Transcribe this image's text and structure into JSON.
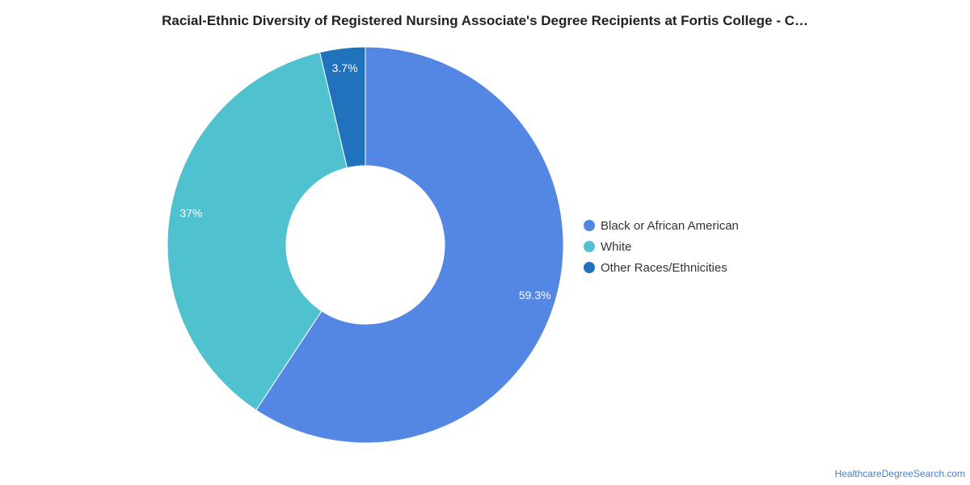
{
  "chart_data": {
    "type": "pie",
    "variant": "donut",
    "title": "Racial-Ethnic Diversity of Registered Nursing Associate's Degree Recipients at Fortis College - C…",
    "slices": [
      {
        "label": "Black or African American",
        "value": 59.3,
        "display": "59.3%",
        "color": "#5486e3"
      },
      {
        "label": "White",
        "value": 37,
        "display": "37%",
        "color": "#50c1cf"
      },
      {
        "label": "Other Races/Ethnicities",
        "value": 3.7,
        "display": "3.7%",
        "color": "#1f72bb"
      }
    ],
    "legend_position": "right"
  },
  "footer": {
    "source_text": "HealthcareDegreeSearch.com"
  }
}
